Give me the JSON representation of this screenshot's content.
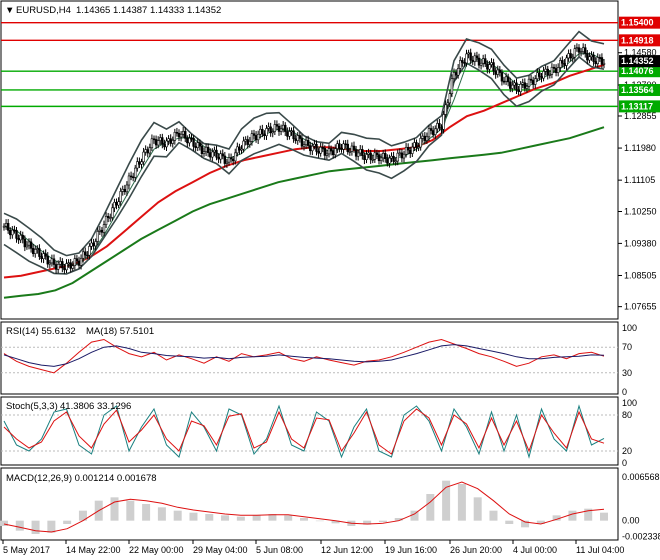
{
  "header": {
    "symbol_label": "EURUSD,H4",
    "ohlc": "1.14365 1.14387 1.14333 1.14352"
  },
  "chart_data": {
    "type": "candlestick",
    "price_axis": {
      "ticks": [
        "1.14580",
        "1.13700",
        "1.12855",
        "1.11980",
        "1.11105",
        "1.10250",
        "1.09380",
        "1.08505",
        "1.07655"
      ],
      "ylim": [
        1.074,
        1.158
      ]
    },
    "horizontal_levels": [
      {
        "value": 1.154,
        "label": "1.15400",
        "color": "#e00000"
      },
      {
        "value": 1.14918,
        "label": "1.14918",
        "color": "#e00000"
      },
      {
        "value": 1.14076,
        "label": "1.14076",
        "color": "#00aa00"
      },
      {
        "value": 1.13564,
        "label": "1.13564",
        "color": "#00aa00"
      },
      {
        "value": 1.13117,
        "label": "1.13117",
        "color": "#00aa00"
      }
    ],
    "current_price": {
      "value": 1.14352,
      "label": "1.14352"
    },
    "time_axis": [
      "5 May 2017",
      "14 May 22:00",
      "22 May 00:00",
      "29 May 04:00",
      "5 Jun 08:00",
      "12 Jun 12:00",
      "19 Jun 16:00",
      "26 Jun 20:00",
      "4 Jul 00:00",
      "11 Jul 04:00"
    ],
    "close_path": [
      1.0985,
      1.096,
      1.093,
      1.0905,
      1.088,
      1.0875,
      1.089,
      1.093,
      1.099,
      1.105,
      1.111,
      1.117,
      1.122,
      1.121,
      1.124,
      1.1215,
      1.119,
      1.118,
      1.116,
      1.1205,
      1.123,
      1.1245,
      1.1255,
      1.1235,
      1.121,
      1.1195,
      1.1185,
      1.1205,
      1.119,
      1.1175,
      1.1175,
      1.1165,
      1.1185,
      1.1205,
      1.124,
      1.126,
      1.14,
      1.145,
      1.1435,
      1.142,
      1.1385,
      1.136,
      1.1375,
      1.14,
      1.141,
      1.144,
      1.147,
      1.144,
      1.1435
    ],
    "ma_slow": [
      1.079,
      1.0795,
      1.08,
      1.081,
      1.083,
      1.086,
      1.089,
      1.092,
      1.095,
      1.0975,
      1.1,
      1.1025,
      1.1045,
      1.106,
      1.1075,
      1.109,
      1.1105,
      1.1115,
      1.1125,
      1.1135,
      1.114,
      1.1145,
      1.115,
      1.1155,
      1.116,
      1.1165,
      1.117,
      1.1175,
      1.118,
      1.1185,
      1.1195,
      1.1205,
      1.1215,
      1.1225,
      1.124,
      1.1255
    ],
    "ma_mid": [
      1.0845,
      1.085,
      1.086,
      1.087,
      1.088,
      1.09,
      1.093,
      1.097,
      1.101,
      1.105,
      1.108,
      1.1105,
      1.113,
      1.115,
      1.1165,
      1.1175,
      1.1185,
      1.1195,
      1.12,
      1.12,
      1.1195,
      1.119,
      1.119,
      1.1195,
      1.12,
      1.122,
      1.1255,
      1.1285,
      1.13,
      1.132,
      1.134,
      1.136,
      1.1375,
      1.1395,
      1.141,
      1.1425
    ],
    "indicators": [
      {
        "name": "RSI(14) 55.6132",
        "ma_label": "MA(18) 57.5101",
        "ticks": [
          "100",
          "70",
          "30",
          "0"
        ],
        "ylim": [
          0,
          100
        ],
        "rsi": [
          60,
          48,
          40,
          35,
          30,
          45,
          62,
          78,
          82,
          70,
          60,
          55,
          62,
          50,
          58,
          52,
          45,
          55,
          48,
          60,
          55,
          58,
          62,
          52,
          48,
          55,
          50,
          46,
          42,
          48,
          50,
          55,
          62,
          70,
          78,
          82,
          75,
          68,
          60,
          55,
          48,
          40,
          45,
          55,
          58,
          52,
          60,
          62,
          56
        ],
        "rsi_ma": [
          58,
          52,
          46,
          42,
          40,
          44,
          52,
          62,
          70,
          72,
          68,
          62,
          60,
          57,
          56,
          55,
          53,
          54,
          52,
          54,
          55,
          56,
          58,
          56,
          54,
          53,
          52,
          50,
          48,
          47,
          48,
          50,
          55,
          60,
          66,
          72,
          74,
          72,
          68,
          64,
          60,
          55,
          52,
          52,
          54,
          55,
          56,
          58,
          57.5
        ]
      },
      {
        "name": "Stoch(5,3,3)",
        "values_label": "41.3806 33.1296",
        "ticks": [
          "100",
          "80",
          "20",
          "0"
        ],
        "ylim": [
          0,
          100
        ],
        "k": [
          70,
          30,
          20,
          40,
          85,
          90,
          30,
          15,
          80,
          95,
          20,
          60,
          90,
          30,
          10,
          85,
          60,
          20,
          90,
          80,
          15,
          40,
          95,
          30,
          20,
          85,
          70,
          10,
          60,
          90,
          20,
          10,
          80,
          95,
          70,
          20,
          90,
          60,
          15,
          85,
          20,
          80,
          10,
          90,
          40,
          20,
          95,
          30,
          41
        ],
        "d": [
          60,
          40,
          25,
          35,
          70,
          85,
          45,
          25,
          65,
          88,
          35,
          55,
          80,
          40,
          20,
          70,
          62,
          30,
          78,
          82,
          25,
          35,
          85,
          40,
          25,
          75,
          72,
          20,
          50,
          85,
          30,
          15,
          70,
          90,
          75,
          30,
          80,
          65,
          25,
          75,
          30,
          70,
          20,
          80,
          50,
          25,
          85,
          40,
          33
        ]
      },
      {
        "name": "MACD(12,26,9) 0.001214 0.001678",
        "ticks": [
          "0.006568",
          "0.00",
          "-0.002338"
        ],
        "ylim": [
          -0.0026,
          0.007
        ],
        "hist": [
          -0.0008,
          -0.0015,
          -0.002,
          -0.0018,
          -0.0005,
          0.0015,
          0.003,
          0.0035,
          0.003,
          0.0025,
          0.002,
          0.0015,
          0.0012,
          0.001,
          0.0008,
          0.0006,
          0.0008,
          0.001,
          0.0008,
          0.0004,
          0.0,
          -0.0004,
          -0.0008,
          -0.0006,
          -0.0002,
          0.0004,
          0.0015,
          0.004,
          0.006,
          0.0055,
          0.0035,
          0.0015,
          -0.0005,
          -0.001,
          -0.0005,
          0.0008,
          0.0015,
          0.0018,
          0.0012
        ],
        "signal": [
          -0.0005,
          -0.001,
          -0.0015,
          -0.0017,
          -0.0012,
          0.0,
          0.0015,
          0.0028,
          0.0032,
          0.003,
          0.0026,
          0.002,
          0.0016,
          0.0013,
          0.001,
          0.0008,
          0.0008,
          0.0009,
          0.0009,
          0.0006,
          0.0003,
          0.0,
          -0.0004,
          -0.0005,
          -0.0004,
          0.0,
          0.001,
          0.0028,
          0.005,
          0.0058,
          0.0048,
          0.003,
          0.001,
          -0.0002,
          -0.0005,
          0.0002,
          0.001,
          0.0015,
          0.0017
        ]
      }
    ]
  }
}
